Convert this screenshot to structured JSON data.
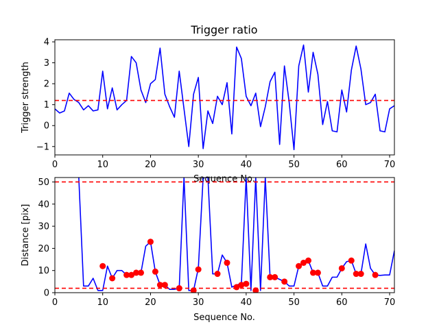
{
  "chart_data": [
    {
      "type": "line",
      "title": "Trigger ratio",
      "xlabel": "Sequence No.",
      "ylabel": "Trigger strength",
      "xlim": [
        0,
        71
      ],
      "ylim": [
        -1.4,
        4.1
      ],
      "xticks": [
        0,
        10,
        20,
        30,
        40,
        50,
        60,
        70
      ],
      "yticks": [
        -1,
        0,
        1,
        2,
        3,
        4
      ],
      "grid": false,
      "colors": {
        "line": "#0000ff",
        "threshold": "#ff0000"
      },
      "series": [
        {
          "x": [
            0,
            1,
            2,
            3,
            4,
            5,
            6,
            7,
            8,
            9,
            10,
            11,
            12,
            13,
            14,
            15,
            16,
            17,
            18,
            19,
            20,
            21,
            22,
            23,
            24,
            25,
            26,
            27,
            28,
            29,
            30,
            31,
            32,
            33,
            34,
            35,
            36,
            37,
            38,
            39,
            40,
            41,
            42,
            43,
            44,
            45,
            46,
            47,
            48,
            49,
            50,
            51,
            52,
            53,
            54,
            55,
            56,
            57,
            58,
            59,
            60,
            61,
            62,
            63,
            64,
            65,
            66,
            67,
            68,
            69,
            70,
            71
          ],
          "y": [
            0.8,
            0.6,
            0.7,
            1.55,
            1.25,
            1.1,
            0.75,
            0.95,
            0.7,
            0.75,
            2.6,
            0.8,
            1.8,
            0.75,
            1.0,
            1.2,
            3.3,
            3.0,
            1.7,
            1.1,
            2.0,
            2.2,
            3.7,
            1.5,
            0.9,
            0.4,
            2.6,
            0.8,
            -1.0,
            1.5,
            2.3,
            -1.1,
            0.7,
            0.1,
            1.4,
            1.0,
            2.05,
            -0.4,
            3.75,
            3.2,
            1.4,
            0.95,
            1.55,
            -0.05,
            0.9,
            2.1,
            2.55,
            -0.9,
            2.85,
            1.1,
            -1.15,
            2.85,
            3.85,
            1.6,
            3.5,
            2.45,
            0.05,
            1.15,
            -0.25,
            -0.3,
            1.7,
            0.65,
            2.65,
            3.8,
            2.7,
            1.0,
            1.1,
            1.5,
            -0.25,
            -0.3,
            0.8,
            0.95
          ]
        }
      ],
      "hlines": [
        1.2
      ]
    },
    {
      "type": "line",
      "title": "",
      "xlabel": "Sequence No.",
      "ylabel": "Distance [pix]",
      "xlim": [
        0,
        71
      ],
      "ylim": [
        0,
        52
      ],
      "xticks": [
        0,
        10,
        20,
        30,
        40,
        50,
        60,
        70
      ],
      "yticks": [
        0,
        10,
        20,
        30,
        40,
        50
      ],
      "grid": false,
      "colors": {
        "line": "#0000ff",
        "threshold": "#ff0000",
        "points": "#ff0000"
      },
      "series": [
        {
          "x": [
            5,
            6,
            7,
            8,
            9,
            10,
            11,
            12,
            13,
            14,
            15,
            16,
            17,
            18,
            19,
            20,
            21,
            22,
            23,
            24,
            25,
            26,
            27,
            28,
            29,
            30,
            31,
            32,
            33,
            34,
            35,
            36,
            37,
            38,
            39,
            40,
            41,
            42,
            43,
            44,
            45,
            46,
            47,
            48,
            49,
            50,
            51,
            52,
            53,
            54,
            55,
            56,
            57,
            58,
            59,
            60,
            61,
            62,
            63,
            64,
            65,
            66,
            67,
            68,
            69,
            70,
            71
          ],
          "y": [
            52,
            3,
            3,
            6.5,
            1,
            1,
            12,
            6.5,
            10,
            10,
            8,
            8,
            9,
            9,
            21,
            23,
            9.5,
            3.5,
            3.5,
            1.5,
            1.5,
            2,
            52,
            1,
            1,
            11,
            52,
            52,
            8.5,
            8.5,
            17,
            13.5,
            2.5,
            3.5,
            4,
            52,
            1,
            52,
            1,
            52,
            7,
            7,
            6,
            5,
            3,
            3,
            12,
            13.5,
            14.5,
            9,
            9,
            3,
            3,
            7,
            7,
            11,
            14,
            14.5,
            8.5,
            8.5,
            22,
            11,
            8,
            7.8,
            8,
            8,
            19
          ]
        }
      ],
      "points": {
        "x": [
          10,
          12,
          15,
          16,
          17,
          18,
          20,
          21,
          22,
          23,
          26,
          29,
          30,
          34,
          36,
          38,
          39,
          40,
          42,
          45,
          46,
          48,
          51,
          52,
          53,
          54,
          55,
          60,
          62,
          63,
          64,
          67
        ],
        "y": [
          12,
          6.5,
          8,
          8,
          9,
          9,
          23,
          9.5,
          3.5,
          3.5,
          2,
          1,
          10.5,
          8.5,
          13.5,
          2.5,
          3.5,
          4,
          1,
          7,
          7,
          5,
          12,
          13.5,
          14.5,
          9,
          9,
          11,
          14.5,
          8.5,
          8.5,
          8
        ]
      },
      "hlines": [
        50,
        2
      ]
    }
  ]
}
